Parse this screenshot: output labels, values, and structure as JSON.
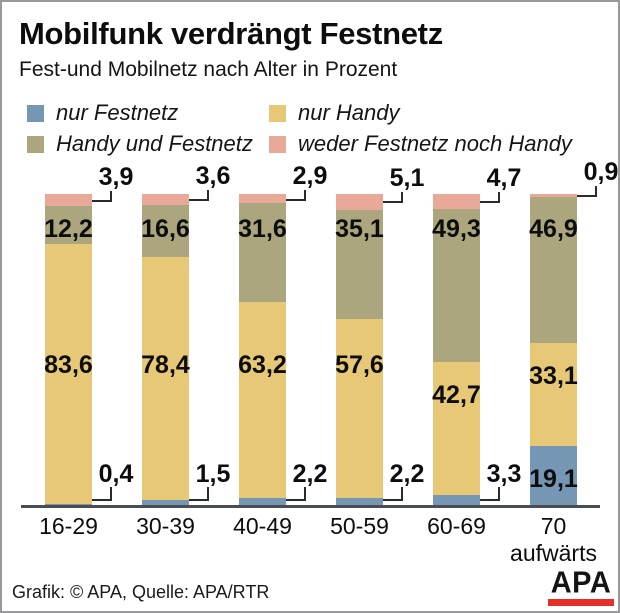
{
  "title": "Mobilfunk verdrängt Festnetz",
  "subtitle": "Fest-und Mobilnetz nach Alter in Prozent",
  "legend": [
    {
      "label": "nur Festnetz",
      "color": "#7697b4"
    },
    {
      "label": "nur Handy",
      "color": "#e6c876"
    },
    {
      "label": "Handy und Festnetz",
      "color": "#aca67f"
    },
    {
      "label": "weder Festnetz noch Handy",
      "color": "#e9a998"
    }
  ],
  "footer": {
    "credit": "Grafik: © APA, Quelle: APA/RTR",
    "logo_text": "APA",
    "logo_bar_color": "#e62e2a"
  },
  "colors": {
    "baseline": "#4a4d52",
    "connector": "#2b2b2b",
    "border": "#97999c"
  },
  "chart_data": {
    "type": "bar",
    "stacked": true,
    "unit": "percent",
    "title": "Mobilfunk verdrängt Festnetz",
    "subtitle": "Fest-und Mobilnetz nach Alter in Prozent",
    "categories": [
      "16-29",
      "30-39",
      "40-49",
      "50-59",
      "60-69",
      "70 aufwärts"
    ],
    "series": [
      {
        "name": "nur Festnetz",
        "color": "#7697b4",
        "values": [
          0.4,
          1.5,
          2.2,
          2.2,
          3.3,
          19.1
        ]
      },
      {
        "name": "nur Handy",
        "color": "#e6c876",
        "values": [
          83.6,
          78.4,
          63.2,
          57.6,
          42.7,
          33.1
        ]
      },
      {
        "name": "Handy und Festnetz",
        "color": "#aca67f",
        "values": [
          12.2,
          16.6,
          31.6,
          35.1,
          49.3,
          46.9
        ]
      },
      {
        "name": "weder Festnetz noch Handy",
        "color": "#e9a998",
        "values": [
          3.9,
          3.6,
          2.9,
          5.1,
          4.7,
          0.9
        ]
      }
    ],
    "ylim": [
      0,
      100
    ],
    "grid": false,
    "legend_position": "top"
  }
}
